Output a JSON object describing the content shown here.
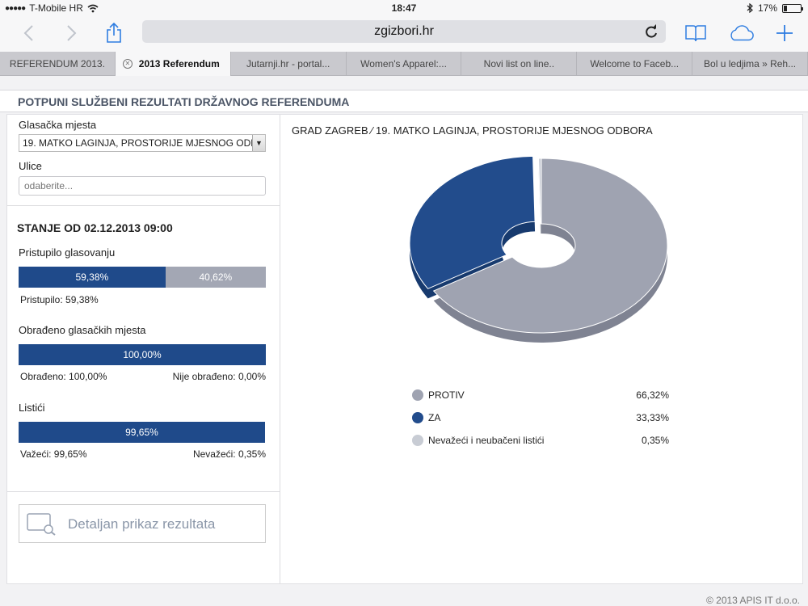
{
  "status": {
    "carrier": "T-Mobile HR",
    "signal": "●●●●●",
    "time": "18:47",
    "battery": "17%"
  },
  "browser": {
    "url": "zgizbori.hr",
    "tabs": [
      {
        "label": "REFERENDUM 2013.",
        "active": false
      },
      {
        "label": "2013 Referendum",
        "active": true
      },
      {
        "label": "Jutarnji.hr - portal...",
        "active": false
      },
      {
        "label": "Women's Apparel:...",
        "active": false
      },
      {
        "label": "Novi list on line..",
        "active": false
      },
      {
        "label": "Welcome to Faceb...",
        "active": false
      },
      {
        "label": "Bol u ledjima » Reh...",
        "active": false
      }
    ]
  },
  "page": {
    "heading": "POTPUNI SLUŽBENI REZULTATI DRŽAVNOG REFERENDUMA",
    "polling_label": "Glasačka mjesta",
    "polling_value": "19. MATKO LAGINJA, PROSTORIJE MJESNOG ODBORA",
    "streets_label": "Ulice",
    "streets_placeholder": "odaberite...",
    "state_title": "STANJE OD 02.12.2013 09:00",
    "turnout": {
      "label": "Pristupilo glasovanju",
      "value": 59.38,
      "value_text": "59,38%",
      "rest_text": "40,62%",
      "caption": "Pristupilo: 59,38%"
    },
    "processed": {
      "label": "Obrađeno glasačkih mjesta",
      "value": 100,
      "value_text": "100,00%",
      "caption_left": "Obrađeno: 100,00%",
      "caption_right": "Nije obrađeno: 0,00%"
    },
    "ballots": {
      "label": "Listići",
      "value": 99.65,
      "value_text": "99,65%",
      "caption_left": "Važeći: 99,65%",
      "caption_right": "Nevažeći: 0,35%"
    },
    "detail_button": "Detaljan prikaz rezultata",
    "breadcrumb": "GRAD ZAGREB  ⁄ 19. MATKO LAGINJA, PROSTORIJE MJESNOG ODBORA",
    "footer": "© 2013 APIS IT d.o.o."
  },
  "colors": {
    "protiv": "#9fa3b1",
    "za": "#224c8c",
    "nevazeci": "#c8ccd4"
  },
  "chart_data": {
    "type": "pie",
    "categories": [
      "PROTIV",
      "ZA",
      "Nevažeći i neubačeni listići"
    ],
    "values": [
      66.32,
      33.33,
      0.35
    ],
    "labels": [
      "66,32%",
      "33,33%",
      "0,35%"
    ]
  }
}
